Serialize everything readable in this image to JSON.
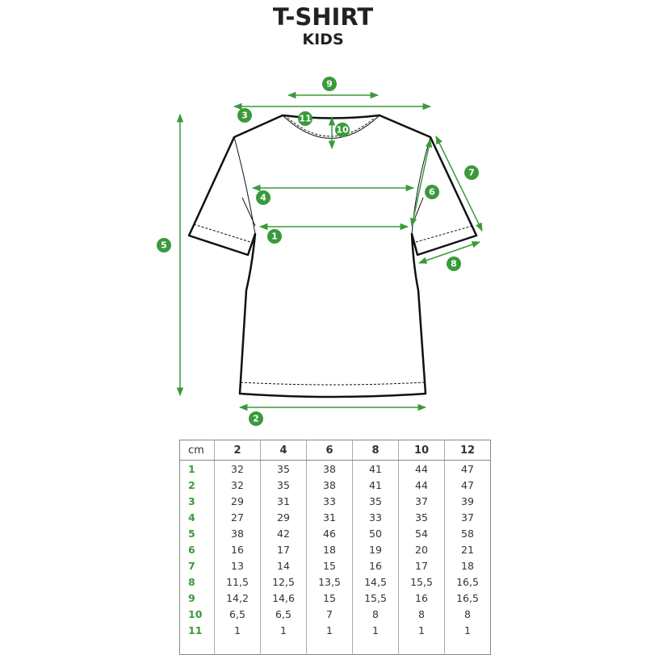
{
  "title": "T-SHIRT",
  "subtitle": "KIDS",
  "accent_color": "#3a9a3a",
  "markers": [
    "1",
    "2",
    "3",
    "4",
    "5",
    "6",
    "7",
    "8",
    "9",
    "10",
    "11"
  ],
  "table": {
    "unit": "cm",
    "sizes": [
      "2",
      "4",
      "6",
      "8",
      "10",
      "12"
    ],
    "rows": [
      {
        "label": "1",
        "values": [
          "32",
          "35",
          "38",
          "41",
          "44",
          "47"
        ]
      },
      {
        "label": "2",
        "values": [
          "32",
          "35",
          "38",
          "41",
          "44",
          "47"
        ]
      },
      {
        "label": "3",
        "values": [
          "29",
          "31",
          "33",
          "35",
          "37",
          "39"
        ]
      },
      {
        "label": "4",
        "values": [
          "27",
          "29",
          "31",
          "33",
          "35",
          "37"
        ]
      },
      {
        "label": "5",
        "values": [
          "38",
          "42",
          "46",
          "50",
          "54",
          "58"
        ]
      },
      {
        "label": "6",
        "values": [
          "16",
          "17",
          "18",
          "19",
          "20",
          "21"
        ]
      },
      {
        "label": "7",
        "values": [
          "13",
          "14",
          "15",
          "16",
          "17",
          "18"
        ]
      },
      {
        "label": "8",
        "values": [
          "11,5",
          "12,5",
          "13,5",
          "14,5",
          "15,5",
          "16,5"
        ]
      },
      {
        "label": "9",
        "values": [
          "14,2",
          "14,6",
          "15",
          "15,5",
          "16",
          "16,5"
        ]
      },
      {
        "label": "10",
        "values": [
          "6,5",
          "6,5",
          "7",
          "8",
          "8",
          "8"
        ]
      },
      {
        "label": "11",
        "values": [
          "1",
          "1",
          "1",
          "1",
          "1",
          "1"
        ]
      }
    ]
  }
}
